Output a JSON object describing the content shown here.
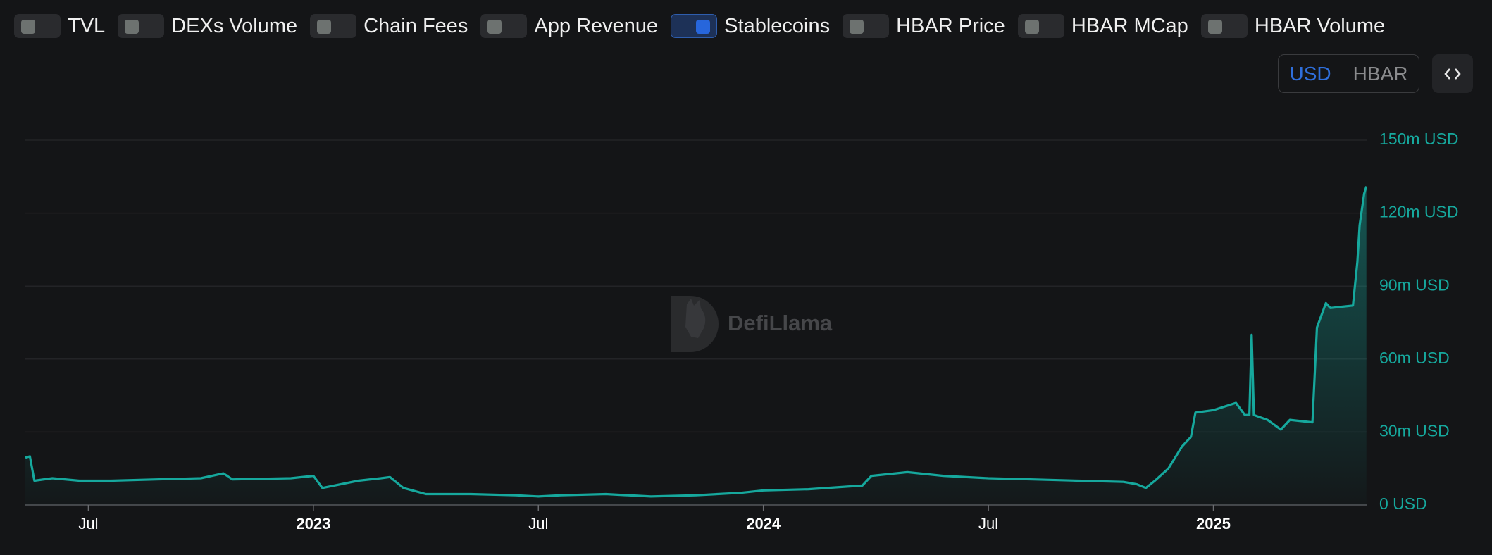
{
  "toggles": [
    {
      "label": "TVL",
      "checked": false
    },
    {
      "label": "DEXs Volume",
      "checked": false
    },
    {
      "label": "Chain Fees",
      "checked": false
    },
    {
      "label": "App Revenue",
      "checked": false
    },
    {
      "label": "Stablecoins",
      "checked": true
    },
    {
      "label": "HBAR Price",
      "checked": false
    },
    {
      "label": "HBAR MCap",
      "checked": false
    },
    {
      "label": "HBAR Volume",
      "checked": false
    }
  ],
  "units": {
    "options": [
      "USD",
      "HBAR"
    ],
    "selected": "USD"
  },
  "watermark": "DefiLlama",
  "chart_data": {
    "type": "area",
    "color": "#16a89d",
    "x": [
      2022.36,
      2022.37,
      2022.38,
      2022.42,
      2022.48,
      2022.55,
      2022.65,
      2022.75,
      2022.8,
      2022.82,
      2022.95,
      2023.0,
      2023.02,
      2023.1,
      2023.15,
      2023.17,
      2023.2,
      2023.25,
      2023.35,
      2023.45,
      2023.5,
      2023.55,
      2023.65,
      2023.75,
      2023.85,
      2023.95,
      2024.0,
      2024.1,
      2024.18,
      2024.22,
      2024.24,
      2024.32,
      2024.4,
      2024.5,
      2024.6,
      2024.7,
      2024.8,
      2024.83,
      2024.85,
      2024.87,
      2024.9,
      2024.93,
      2024.95,
      2024.96,
      2025.0,
      2025.05,
      2025.07,
      2025.08,
      2025.085,
      2025.09,
      2025.12,
      2025.15,
      2025.17,
      2025.22,
      2025.23,
      2025.25,
      2025.26,
      2025.31,
      2025.32,
      2025.325,
      2025.335,
      2025.34
    ],
    "values": [
      19500000,
      20000000,
      10000000,
      11000000,
      10000000,
      10000000,
      10500000,
      11000000,
      13000000,
      10500000,
      11000000,
      12000000,
      7000000,
      10000000,
      11000000,
      11500000,
      7000000,
      4500000,
      4500000,
      4000000,
      3500000,
      4000000,
      4500000,
      3500000,
      4000000,
      5000000,
      6000000,
      6500000,
      7500000,
      8000000,
      12000000,
      13500000,
      12000000,
      11000000,
      10500000,
      10000000,
      9500000,
      8500000,
      7000000,
      10000000,
      15000000,
      24000000,
      28000000,
      38000000,
      39000000,
      42000000,
      37000000,
      37000000,
      70000000,
      37000000,
      35000000,
      31000000,
      35000000,
      34000000,
      73000000,
      83000000,
      81000000,
      82000000,
      100000000,
      115000000,
      128000000,
      131000000
    ],
    "xlim": [
      2022.36,
      2025.342
    ],
    "xticks": [
      {
        "value": 2022.5,
        "label": "Jul"
      },
      2023,
      {
        "value": 2023.5,
        "label": "Jul"
      },
      2024,
      {
        "value": 2024.5,
        "label": "Jul"
      },
      2025
    ],
    "ylim": [
      0,
      150000000
    ],
    "yticks": [
      {
        "value": 0,
        "label": "0 USD"
      },
      {
        "value": 30000000,
        "label": "30m USD"
      },
      {
        "value": 60000000,
        "label": "60m USD"
      },
      {
        "value": 90000000,
        "label": "90m USD"
      },
      {
        "value": 120000000,
        "label": "120m USD"
      },
      {
        "value": 150000000,
        "label": "150m USD"
      }
    ],
    "grid": true
  }
}
